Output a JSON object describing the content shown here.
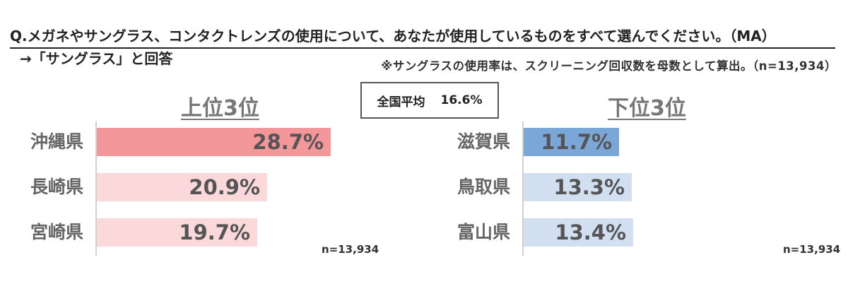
{
  "header": {
    "question": "Q.メガネやサングラス、コンタクトレンズの使用について、あなたが使用しているものをすべて選んでください。（MA）",
    "answer": "→「サングラス」と回答",
    "note": "※サングラスの使用率は、スクリーニング回収数を母数として算出。（n=13,934）"
  },
  "average": {
    "label": "全国平均",
    "value": "16.6%"
  },
  "chart_data": [
    {
      "type": "bar",
      "orientation": "horizontal",
      "title": "上位3位",
      "categories": [
        "沖縄県",
        "長崎県",
        "宮崎県"
      ],
      "values": [
        28.7,
        20.9,
        19.7
      ],
      "value_labels": [
        "28.7%",
        "20.9%",
        "19.7%"
      ],
      "unit": "%",
      "colors": [
        "#f4979b",
        "#fbd9da",
        "#fbd9da"
      ],
      "n_label": "n=13,934"
    },
    {
      "type": "bar",
      "orientation": "horizontal",
      "title": "下位3位",
      "categories": [
        "滋賀県",
        "鳥取県",
        "富山県"
      ],
      "values": [
        11.7,
        13.3,
        13.4
      ],
      "value_labels": [
        "11.7%",
        "13.3%",
        "13.4%"
      ],
      "unit": "%",
      "colors": [
        "#7ba7d8",
        "#d2dff0",
        "#d2dff0"
      ],
      "n_label": "n=13,934"
    }
  ]
}
